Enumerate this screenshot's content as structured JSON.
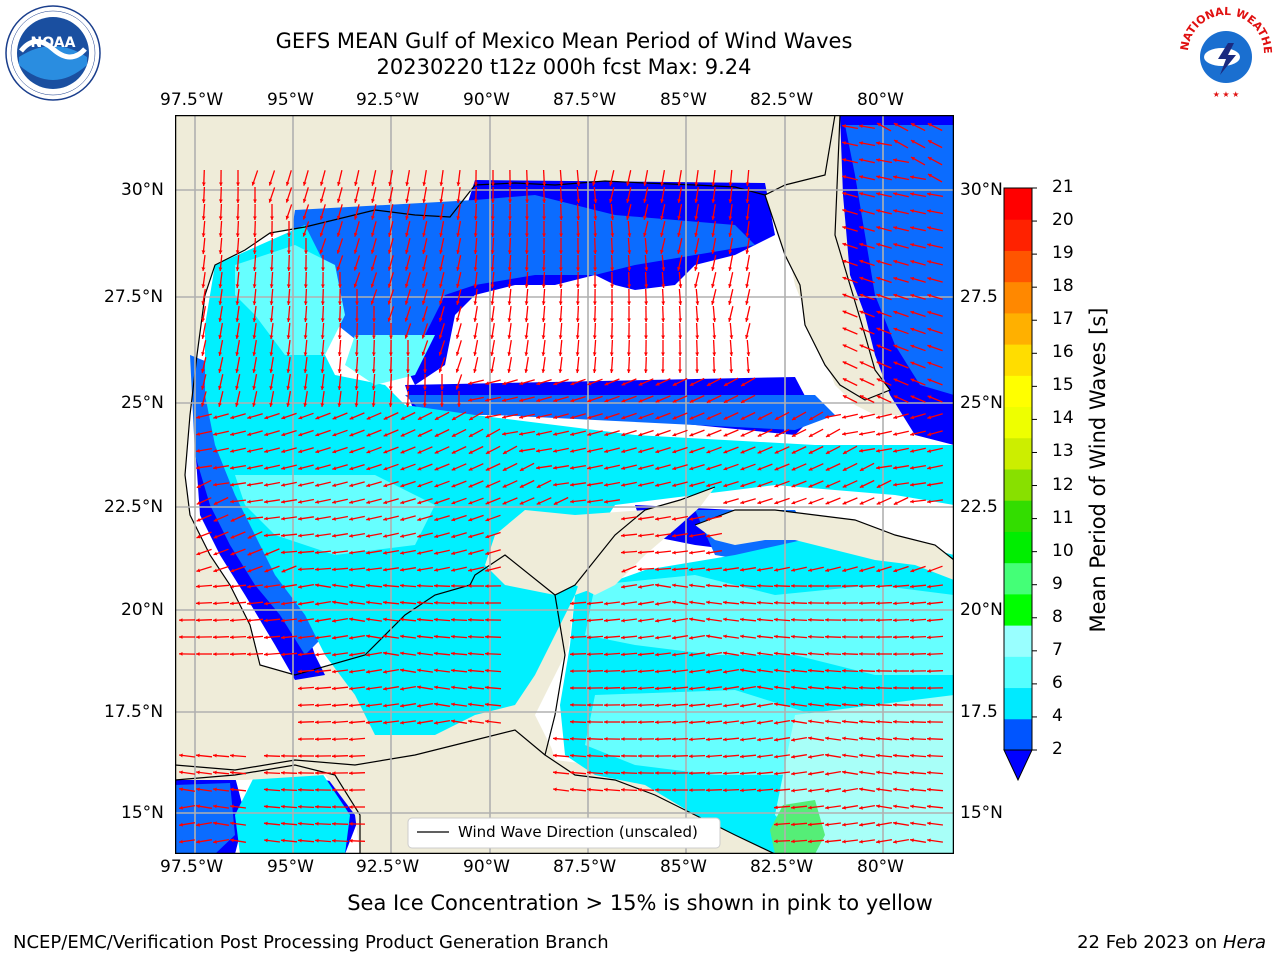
{
  "title": {
    "line1": "GEFS MEAN Gulf of Mexico Mean Period of Wind Waves",
    "line2": "20230220 t12z 000h fcst   Max: 9.24"
  },
  "logos": {
    "left": "NOAA",
    "left_ring": "NATIONAL OCEANIC AND ATMOSPHERIC ADMINISTRATION · U.S. DEPARTMENT OF COMMERCE",
    "right_ring": "NATIONAL WEATHER SERVICE"
  },
  "axes": {
    "lon_ticks": [
      "97.5°W",
      "95°W",
      "92.5°W",
      "90°W",
      "87.5°W",
      "85°W",
      "82.5°W",
      "80°W"
    ],
    "lat_ticks_left": [
      "30°N",
      "27.5°N",
      "25°N",
      "22.5°N",
      "20°N",
      "17.5°N",
      "15°N"
    ],
    "lat_ticks_right": [
      "30°N",
      "27.5",
      "25°N",
      "22.5",
      "20°N",
      "17.5",
      "15°N"
    ]
  },
  "legend": {
    "label": "Wind Wave Direction (unscaled)"
  },
  "colorbar": {
    "label": "Mean Period of Wind Waves [s]",
    "ticks": [
      "2",
      "4",
      "6",
      "7",
      "8",
      "9",
      "10",
      "11",
      "12",
      "13",
      "14",
      "15",
      "16",
      "17",
      "18",
      "19",
      "20",
      "21"
    ],
    "colors": [
      "#0055ff",
      "#00eaff",
      "#55ffff",
      "#99ffff",
      "#00ff00",
      "#44ff77",
      "#00ee00",
      "#33dd00",
      "#88e000",
      "#ccee00",
      "#eeff00",
      "#ffff00",
      "#ffdd00",
      "#ffb000",
      "#ff8800",
      "#ff5500",
      "#ff2200",
      "#ff0000"
    ],
    "min_color": "#0000ff"
  },
  "colors": {
    "land": "#efecd9",
    "water_none": "#ffffff",
    "dark_blue": "#0000ff",
    "blue": "#0b6cff",
    "cyan": "#00f0ff",
    "light_cyan": "#66ffff",
    "pale_cyan": "#a8fff8",
    "green": "#55ee77",
    "arrow": "#ff0000",
    "grid": "#b0b0b0"
  },
  "footer": {
    "caption": "Sea Ice Concentration > 15% is shown in pink to yellow",
    "left": "NCEP/EMC/Verification Post Processing Product Generation Branch",
    "right_prefix": "22 Feb 2023 on ",
    "right_host": "Hera"
  }
}
